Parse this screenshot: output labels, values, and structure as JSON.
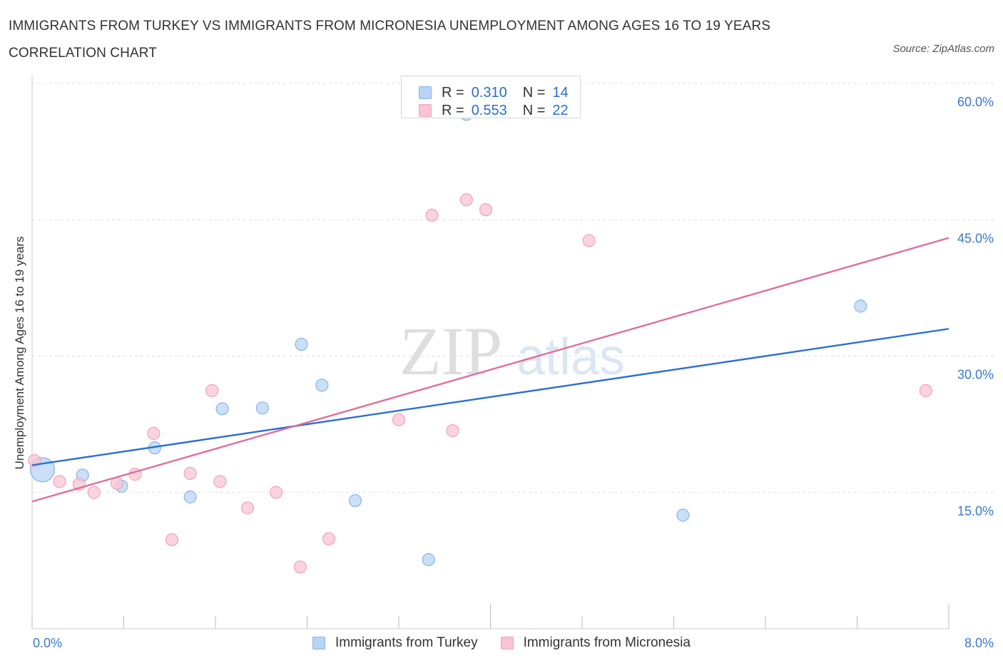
{
  "title": "IMMIGRANTS FROM TURKEY VS IMMIGRANTS FROM MICRONESIA UNEMPLOYMENT AMONG AGES 16 TO 19 YEARS CORRELATION CHART",
  "source": "Source: ZipAtlas.com",
  "watermark": {
    "zip": "ZIP",
    "atlas": "atlas"
  },
  "legend_top": [
    {
      "r_label": "R =",
      "r_value": "0.310",
      "n_label": "N =",
      "n_value": "14"
    },
    {
      "r_label": "R =",
      "r_value": "0.553",
      "n_label": "N =",
      "n_value": "22"
    }
  ],
  "colors": {
    "turkey_fill": "#b8d4f5",
    "turkey_stroke": "#8ab4e8",
    "turkey_line": "#2a6fd0",
    "micronesia_fill": "#f8c4d4",
    "micronesia_stroke": "#eea3bb",
    "micronesia_line": "#e06e9a",
    "grid": "#dddddd",
    "tick_text": "#3a78cc"
  },
  "chart_data": {
    "type": "scatter",
    "title": "IMMIGRANTS FROM TURKEY VS IMMIGRANTS FROM MICRONESIA UNEMPLOYMENT AMONG AGES 16 TO 19 YEARS CORRELATION CHART",
    "xlabel": "",
    "ylabel": "Unemployment Among Ages 16 to 19 years",
    "xlim": [
      0,
      8
    ],
    "ylim": [
      0,
      60
    ],
    "x_tick_labels": [
      "0.0%",
      "8.0%"
    ],
    "y_ticks": [
      15,
      30,
      45,
      60
    ],
    "y_tick_labels": [
      "15.0%",
      "30.0%",
      "45.0%",
      "60.0%"
    ],
    "grid": true,
    "legend_placement": "bottom",
    "series": [
      {
        "name": "Immigrants from Turkey",
        "color": "#b8d4f5",
        "points": [
          {
            "x": 0.09,
            "y": 17.5,
            "big": true
          },
          {
            "x": 0.44,
            "y": 16.9
          },
          {
            "x": 0.78,
            "y": 15.7
          },
          {
            "x": 1.07,
            "y": 19.9
          },
          {
            "x": 1.38,
            "y": 14.5
          },
          {
            "x": 1.66,
            "y": 24.2
          },
          {
            "x": 2.01,
            "y": 24.3
          },
          {
            "x": 2.35,
            "y": 31.3
          },
          {
            "x": 2.53,
            "y": 26.8
          },
          {
            "x": 2.82,
            "y": 14.1
          },
          {
            "x": 3.46,
            "y": 7.6
          },
          {
            "x": 3.79,
            "y": 56.6
          },
          {
            "x": 5.68,
            "y": 12.5
          },
          {
            "x": 7.23,
            "y": 35.5
          }
        ],
        "trend": {
          "x": [
            0,
            8
          ],
          "y": [
            18.0,
            33.0
          ]
        }
      },
      {
        "name": "Immigrants from Micronesia",
        "color": "#f8c4d4",
        "points": [
          {
            "x": 0.02,
            "y": 18.5
          },
          {
            "x": 0.24,
            "y": 16.2
          },
          {
            "x": 0.41,
            "y": 15.9
          },
          {
            "x": 0.54,
            "y": 15.0
          },
          {
            "x": 0.74,
            "y": 16.0
          },
          {
            "x": 0.9,
            "y": 17.0
          },
          {
            "x": 1.06,
            "y": 21.5
          },
          {
            "x": 1.22,
            "y": 9.8
          },
          {
            "x": 1.38,
            "y": 17.1
          },
          {
            "x": 1.57,
            "y": 26.2
          },
          {
            "x": 1.64,
            "y": 16.2
          },
          {
            "x": 1.88,
            "y": 13.3
          },
          {
            "x": 2.13,
            "y": 15.0
          },
          {
            "x": 2.34,
            "y": 6.8
          },
          {
            "x": 2.59,
            "y": 9.9
          },
          {
            "x": 3.2,
            "y": 23.0
          },
          {
            "x": 3.49,
            "y": 45.5
          },
          {
            "x": 3.67,
            "y": 21.8
          },
          {
            "x": 3.79,
            "y": 47.2
          },
          {
            "x": 3.96,
            "y": 46.1
          },
          {
            "x": 4.86,
            "y": 42.7
          },
          {
            "x": 7.8,
            "y": 26.2
          }
        ],
        "trend": {
          "x": [
            0,
            8
          ],
          "y": [
            14.0,
            43.0
          ]
        }
      }
    ]
  }
}
